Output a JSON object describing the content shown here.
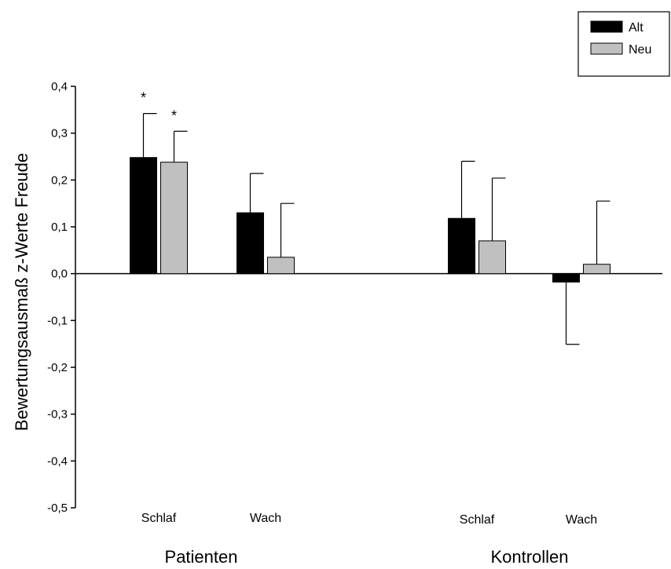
{
  "chart_data": {
    "type": "bar",
    "ylabel": "Bewertungsausmaß z-Werte Freude",
    "ylim": [
      -0.5,
      0.4
    ],
    "yticks": [
      0.4,
      0.3,
      0.2,
      0.1,
      0.0,
      -0.1,
      -0.2,
      -0.3,
      -0.4,
      -0.5
    ],
    "ytick_labels": [
      "0,4",
      "0,3",
      "0,2",
      "0,1",
      "0,0",
      "-0,1",
      "-0,2",
      "-0,3",
      "-0,4",
      "-0,5"
    ],
    "groups": [
      {
        "label": "Patienten",
        "conditions": [
          {
            "label": "Schlaf",
            "index": 0
          },
          {
            "label": "Wach",
            "index": 1
          }
        ]
      },
      {
        "label": "Kontrollen",
        "conditions": [
          {
            "label": "Schlaf",
            "index": 2
          },
          {
            "label": "Wach",
            "index": 3
          }
        ]
      }
    ],
    "series": [
      {
        "name": "Alt",
        "color": "#000000",
        "values": [
          0.248,
          0.13,
          0.118,
          -0.018
        ],
        "error": [
          0.094,
          0.084,
          0.122,
          0.133
        ],
        "error_direction": [
          "up",
          "up",
          "up",
          "down"
        ],
        "significance": [
          "*",
          "",
          "",
          ""
        ]
      },
      {
        "name": "Neu",
        "color": "#c0c0c0",
        "values": [
          0.238,
          0.035,
          0.07,
          0.02
        ],
        "error": [
          0.066,
          0.115,
          0.134,
          0.135
        ],
        "error_direction": [
          "up",
          "up",
          "up",
          "up"
        ],
        "significance": [
          "*",
          "",
          "",
          ""
        ]
      }
    ],
    "legend_position": "top-right"
  }
}
